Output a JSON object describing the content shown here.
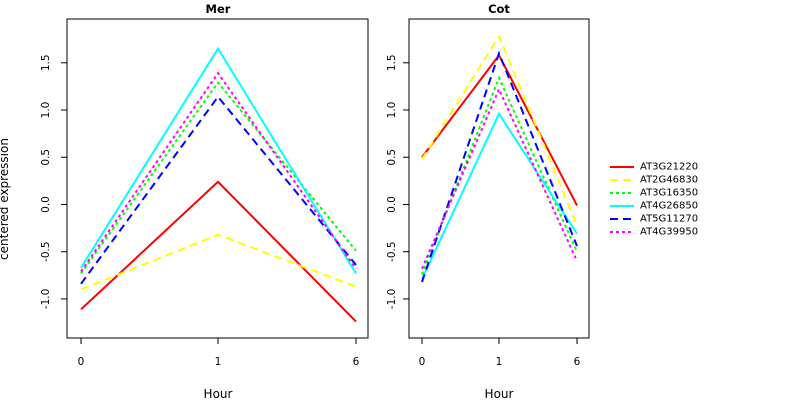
{
  "figure": {
    "shared_ylabel": "centered expression",
    "legend_entries": [
      "AT3G21220",
      "AT2G46830",
      "AT3G16350",
      "AT4G26850",
      "AT5G11270",
      "AT4G39950"
    ]
  },
  "chart_data": [
    {
      "type": "line",
      "title": "Mer",
      "xlabel": "Hour",
      "ylabel": "centered expression",
      "categories": [
        "0",
        "1",
        "6"
      ],
      "ylim": [
        -1.35,
        1.9
      ],
      "yticks": [
        "-1.0",
        "-0.5",
        "0.0",
        "0.5",
        "1.0",
        "1.5"
      ],
      "series": [
        {
          "name": "AT3G21220",
          "color": "#ff0000",
          "dash": "solid",
          "values": [
            -1.11,
            0.24,
            -1.24
          ]
        },
        {
          "name": "AT2G46830",
          "color": "#ffff00",
          "dash": "long",
          "values": [
            -0.9,
            -0.32,
            -0.87
          ]
        },
        {
          "name": "AT3G16350",
          "color": "#00ff00",
          "dash": "dot",
          "values": [
            -0.73,
            1.29,
            -0.49
          ]
        },
        {
          "name": "AT4G26850",
          "color": "#00ffff",
          "dash": "solid",
          "values": [
            -0.67,
            1.65,
            -0.73
          ]
        },
        {
          "name": "AT5G11270",
          "color": "#0000ff",
          "dash": "long",
          "values": [
            -0.84,
            1.14,
            -0.64
          ]
        },
        {
          "name": "AT4G39950",
          "color": "#ff00ff",
          "dash": "dot",
          "values": [
            -0.71,
            1.39,
            -0.68
          ]
        }
      ]
    },
    {
      "type": "line",
      "title": "Cot",
      "xlabel": "Hour",
      "ylabel": "",
      "categories": [
        "0",
        "1",
        "6"
      ],
      "ylim": [
        -1.35,
        1.9
      ],
      "yticks": [
        "-1.0",
        "-0.5",
        "0.0",
        "0.5",
        "1.0",
        "1.5"
      ],
      "series": [
        {
          "name": "AT3G21220",
          "color": "#ff0000",
          "dash": "solid",
          "values": [
            0.5,
            1.58,
            -0.01
          ]
        },
        {
          "name": "AT2G46830",
          "color": "#ffff00",
          "dash": "long",
          "values": [
            0.48,
            1.78,
            -0.22
          ]
        },
        {
          "name": "AT3G16350",
          "color": "#00ff00",
          "dash": "dot",
          "values": [
            -0.74,
            1.34,
            -0.5
          ]
        },
        {
          "name": "AT4G26850",
          "color": "#00ffff",
          "dash": "solid",
          "values": [
            -0.79,
            0.96,
            -0.31
          ]
        },
        {
          "name": "AT5G11270",
          "color": "#0000ff",
          "dash": "long",
          "values": [
            -0.82,
            1.6,
            -0.44
          ]
        },
        {
          "name": "AT4G39950",
          "color": "#ff00ff",
          "dash": "dot",
          "values": [
            -0.68,
            1.22,
            -0.6
          ]
        }
      ]
    }
  ]
}
